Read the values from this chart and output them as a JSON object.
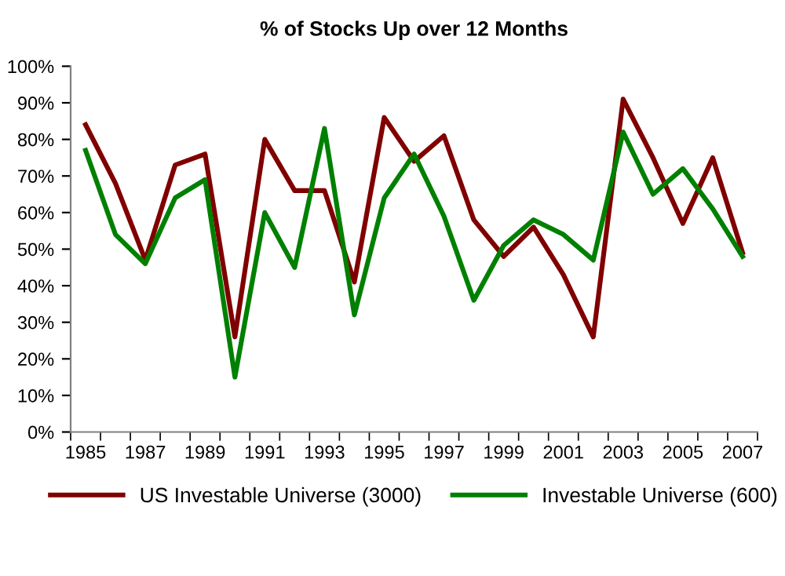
{
  "chart_data": {
    "type": "line",
    "title": "% of Stocks Up over 12 Months",
    "categories": [
      "1985",
      null,
      "1987",
      null,
      "1989",
      null,
      "1991",
      null,
      "1993",
      null,
      "1995",
      null,
      "1997",
      null,
      "1999",
      null,
      "2001",
      null,
      "2003",
      null,
      "2005",
      null,
      "2007"
    ],
    "series": [
      {
        "name": "US Investable Universe (3000)",
        "color": "#800000",
        "values": [
          84,
          68,
          47,
          73,
          76,
          26,
          80,
          66,
          66,
          41,
          86,
          74,
          81,
          58,
          48,
          56,
          43,
          26,
          91,
          75,
          57,
          75,
          49
        ]
      },
      {
        "name": "Investable Universe (600)",
        "color": "#008000",
        "values": [
          77,
          54,
          46,
          64,
          69,
          15,
          60,
          45,
          83,
          32,
          64,
          76,
          59,
          36,
          51,
          58,
          54,
          47,
          82,
          65,
          72,
          61,
          48
        ]
      }
    ],
    "ylim": [
      0,
      100
    ],
    "yticks": [
      {
        "value": 0,
        "label": "0%"
      },
      {
        "value": 10,
        "label": "10%"
      },
      {
        "value": 20,
        "label": "20%"
      },
      {
        "value": 30,
        "label": "30%"
      },
      {
        "value": 40,
        "label": "40%"
      },
      {
        "value": 50,
        "label": "50%"
      },
      {
        "value": 60,
        "label": "60%"
      },
      {
        "value": 70,
        "label": "70%"
      },
      {
        "value": 80,
        "label": "80%"
      },
      {
        "value": 90,
        "label": "90%"
      },
      {
        "value": 100,
        "label": "100%"
      }
    ],
    "grid": false,
    "legend": "bottom",
    "marker": "none",
    "line_style": "solid"
  }
}
